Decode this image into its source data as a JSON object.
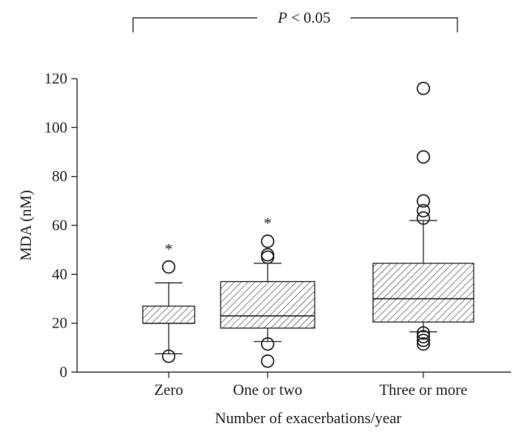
{
  "chart_data": {
    "type": "box",
    "title": "",
    "xlabel": "Number of exacerbations/year",
    "ylabel": "MDA (nM)",
    "ylim": [
      0,
      120
    ],
    "yticks": [
      0,
      20,
      40,
      60,
      80,
      100,
      120
    ],
    "grid": false,
    "categories": [
      "Zero",
      "One or two",
      "Three or more"
    ],
    "boxes": [
      {
        "category": "Zero",
        "whisker_low": 7.5,
        "q1": 20,
        "median": 20,
        "q3": 27,
        "whisker_high": 36.5,
        "outliers": [
          43,
          6.5
        ],
        "marker": "*"
      },
      {
        "category": "One or two",
        "whisker_low": 12.5,
        "q1": 18,
        "median": 23,
        "q3": 37,
        "whisker_high": 44.5,
        "outliers": [
          53.5,
          48,
          47,
          11.5,
          4.5
        ],
        "marker": "*"
      },
      {
        "category": "Three or more",
        "whisker_low": 16.5,
        "q1": 20.5,
        "median": 30,
        "q3": 44.5,
        "whisker_high": 62,
        "outliers": [
          116,
          88,
          70,
          66,
          63,
          16,
          14.5,
          13,
          11.5
        ],
        "marker": ""
      }
    ],
    "significance": {
      "label_italic": "P",
      "label_rest": " < 0.05",
      "from": "Zero",
      "to": "Three or more"
    },
    "box_fill": "hatched"
  }
}
